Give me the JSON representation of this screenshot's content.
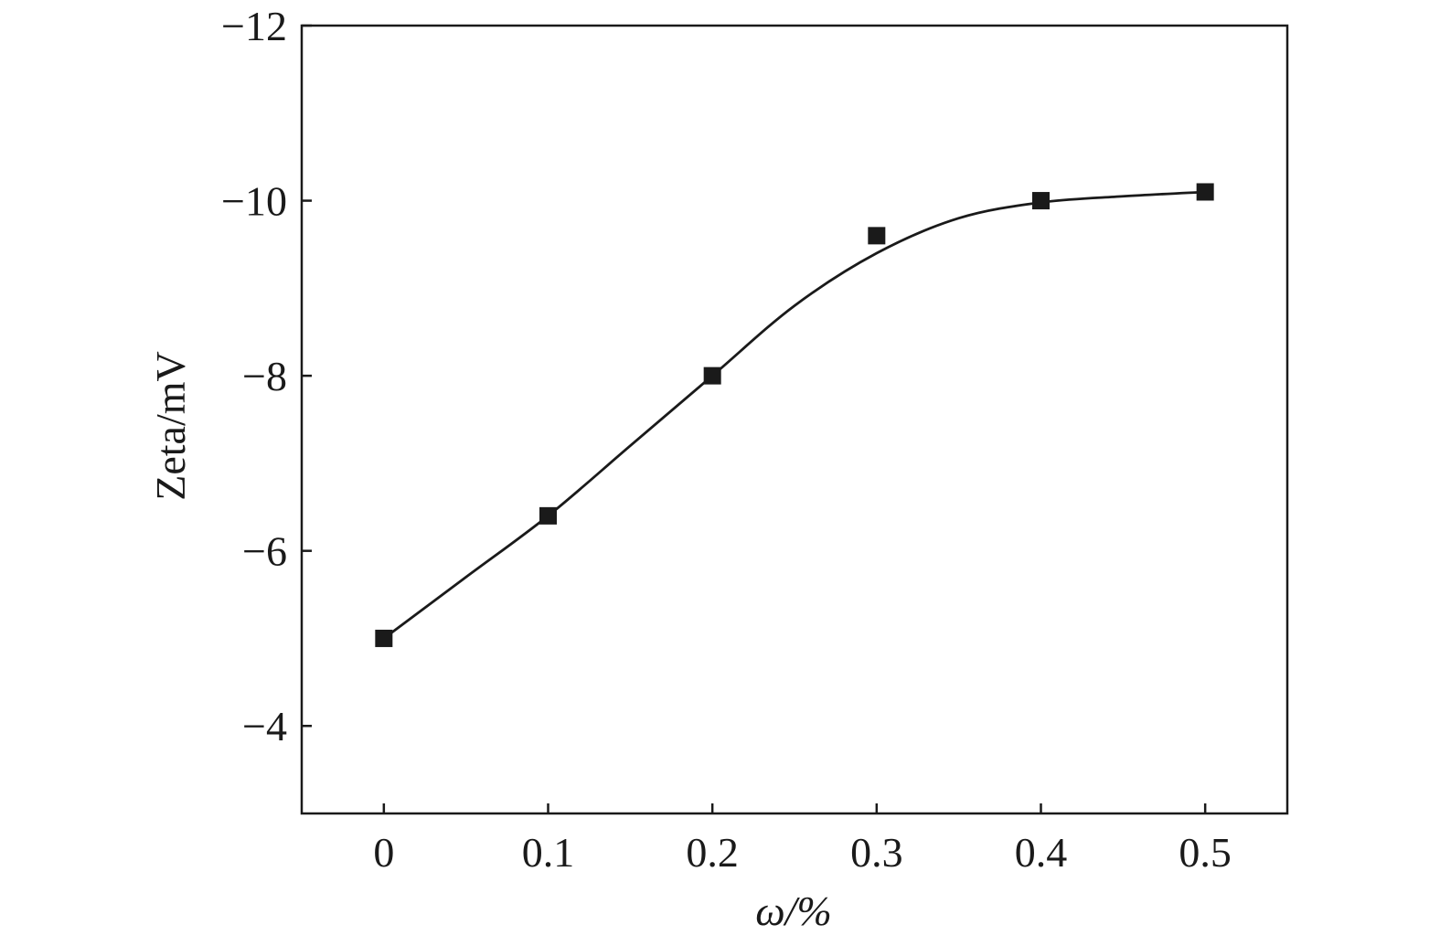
{
  "chart_data": {
    "type": "line",
    "title": "",
    "xlabel": "ω/%",
    "ylabel": "Zeta/mV",
    "xlim": [
      -0.05,
      0.55
    ],
    "ylim": [
      -3,
      -12
    ],
    "y_axis_inverted": true,
    "grid": false,
    "legend": "none",
    "x_ticks": [
      0,
      0.1,
      0.2,
      0.3,
      0.4,
      0.5
    ],
    "x_tick_labels": [
      "0",
      "0.1",
      "0.2",
      "0.3",
      "0.4",
      "0.5"
    ],
    "y_ticks": [
      -4,
      -6,
      -8,
      -10,
      -12
    ],
    "y_tick_labels": [
      "−4",
      "−6",
      "−8",
      "−10",
      "−12"
    ],
    "series": [
      {
        "marker": "square",
        "color": "#1a1a1a",
        "x": [
          0,
          0.1,
          0.2,
          0.3,
          0.4,
          0.5
        ],
        "y": [
          -5.0,
          -6.4,
          -8.0,
          -9.6,
          -10.0,
          -10.1
        ]
      }
    ],
    "fit_curve": {
      "color": "#1a1a1a",
      "x": [
        0,
        0.05,
        0.1,
        0.15,
        0.2,
        0.25,
        0.3,
        0.35,
        0.4,
        0.45,
        0.5
      ],
      "y": [
        -5.0,
        -5.7,
        -6.4,
        -7.2,
        -8.0,
        -8.8,
        -9.4,
        -9.8,
        -9.98,
        -10.05,
        -10.1
      ]
    }
  }
}
